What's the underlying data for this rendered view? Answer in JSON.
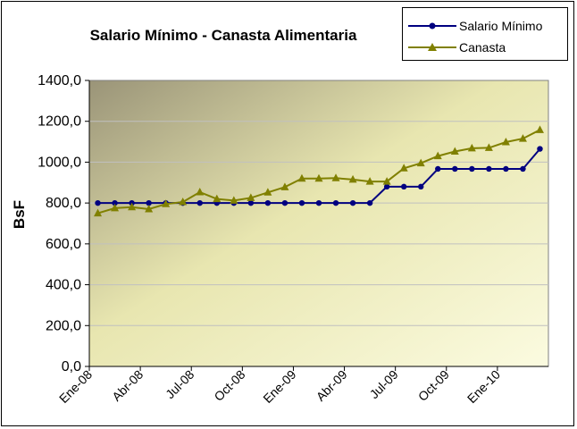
{
  "chart_data": {
    "type": "line",
    "title": "Salario Mínimo - Canasta Alimentaria",
    "ylabel": "BsF",
    "xlabel": "",
    "ylim": [
      0,
      1400
    ],
    "y_ticks": [
      "0,0",
      "200,0",
      "400,0",
      "600,0",
      "800,0",
      "1000,0",
      "1200,0",
      "1400,0"
    ],
    "x_tick_labels": [
      "Ene-08",
      "Abr-08",
      "Jul-08",
      "Oct-08",
      "Ene-09",
      "Abr-09",
      "Jul-09",
      "Oct-09",
      "Ene-10"
    ],
    "x_tick_months": [
      0,
      3,
      6,
      9,
      12,
      15,
      18,
      21,
      24
    ],
    "grid": "horizontal",
    "legend_position": "top-right",
    "series": [
      {
        "name": "Salario Mínimo",
        "color": "#000080",
        "marker": "circle",
        "values": [
          800,
          800,
          800,
          800,
          800,
          800,
          800,
          800,
          800,
          800,
          800,
          800,
          800,
          800,
          800,
          800,
          800,
          880,
          880,
          880,
          967,
          967,
          967,
          967,
          967,
          967,
          1065
        ]
      },
      {
        "name": "Canasta",
        "color": "#808000",
        "marker": "triangle",
        "values": [
          750,
          775,
          780,
          770,
          795,
          805,
          853,
          820,
          812,
          825,
          852,
          878,
          920,
          920,
          922,
          915,
          905,
          905,
          970,
          995,
          1030,
          1052,
          1068,
          1070,
          1098,
          1115,
          1158
        ]
      }
    ]
  }
}
